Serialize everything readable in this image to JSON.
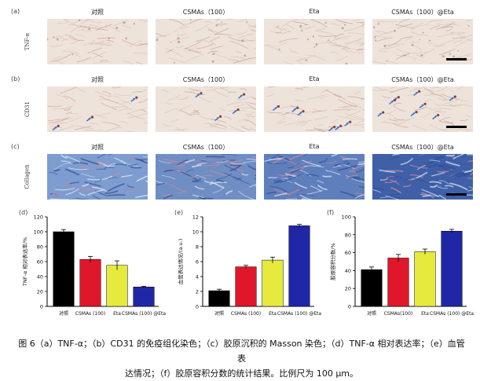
{
  "panel_letters": {
    "a": "(a)",
    "b": "(b)",
    "c": "(c)",
    "d": "(d)",
    "e": "(e)",
    "f": "(f)"
  },
  "rows": [
    {
      "label": "TNF-α",
      "type": "tnf"
    },
    {
      "label": "CD31",
      "type": "cd31"
    },
    {
      "label": "Collagen",
      "type": "collagen"
    }
  ],
  "columns": [
    "对照",
    "CSMAs（100）",
    "Eta",
    "CSMAs（100）@Eta"
  ],
  "colors": {
    "black": "#000000",
    "red": "#e0172b",
    "yellow": "#e6ea3c",
    "blue": "#1f27a6",
    "tissue": "#eee3da",
    "stainBlue": "#6a8fc7"
  },
  "chart_data": [
    {
      "type": "bar",
      "panel": "(d)",
      "ylabel": "TNF-α 相对表达率/%",
      "ylim": [
        0,
        120
      ],
      "yticks": [
        0,
        20,
        40,
        60,
        80,
        100,
        120
      ],
      "categories": [
        "对照",
        "CSMAs (100)",
        "Eta",
        "CSMAs (100) @Eta"
      ],
      "values": [
        100,
        63,
        55,
        26
      ],
      "errors": [
        3,
        4,
        6,
        1
      ]
    },
    {
      "type": "bar",
      "panel": "(e)",
      "ylabel": "血管表达情况/(a.u.)",
      "ylim": [
        0,
        12
      ],
      "yticks": [
        0,
        2,
        4,
        6,
        8,
        10,
        12
      ],
      "categories": [
        "对照",
        "CSMAs (100)",
        "Eta",
        "CSMAs (100) @Eta"
      ],
      "values": [
        2.1,
        5.3,
        6.2,
        10.8
      ],
      "errors": [
        0.2,
        0.2,
        0.4,
        0.2
      ]
    },
    {
      "type": "bar",
      "panel": "(f)",
      "ylabel": "胶原容积分数/%",
      "ylim": [
        0,
        100
      ],
      "yticks": [
        0,
        20,
        40,
        60,
        80,
        100
      ],
      "categories": [
        "对照",
        "CSMAs(100)",
        "Eta",
        "CSMAs (100) @Eta"
      ],
      "values": [
        41,
        54,
        61,
        84
      ],
      "errors": [
        3,
        4,
        3,
        2
      ]
    }
  ],
  "caption": {
    "line1": "图 6（a）TNF-α；（b）CD31 的免疫组化染色；（c）胶原沉积的 Masson 染色；（d）TNF-α 相对表达率；（e）血管表",
    "line2": "达情况；（f）胶原容积分数的统计结果。比例尺为 100 μm。"
  }
}
